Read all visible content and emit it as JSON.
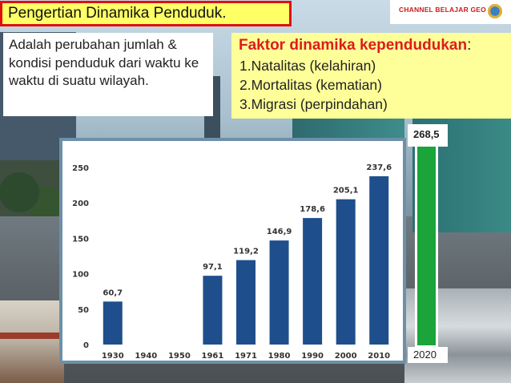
{
  "slide": {
    "title": "Pengertian Dinamika Penduduk.",
    "channel_name": "CHANNEL BELAJAR GEO",
    "definition": "Adalah perubahan jumlah & kondisi penduduk dari waktu ke waktu di suatu wilayah.",
    "faktor": {
      "title": "Faktor dinamika kependudukan",
      "colon": ":",
      "items": [
        "1.Natalitas (kelahiran)",
        "2.Mortalitas (kematian)",
        "3.Migrasi (perpindahan)"
      ]
    },
    "projection": {
      "value_label": "268,5",
      "year_label": "2020",
      "value": 268.5,
      "color": "#1aa43a"
    }
  },
  "chart_data": {
    "type": "bar",
    "categories": [
      "1930",
      "1940",
      "1950",
      "1961",
      "1971",
      "1980",
      "1990",
      "2000",
      "2010"
    ],
    "values": [
      60.7,
      null,
      null,
      97.1,
      119.2,
      146.9,
      178.6,
      205.1,
      237.6
    ],
    "data_labels": [
      "60,7",
      "",
      "",
      "97,1",
      "119,2",
      "146,9",
      "178,6",
      "205,1",
      "237,6"
    ],
    "ylim": [
      0,
      250
    ],
    "yticks": [
      "0",
      "50",
      "100",
      "150",
      "200",
      "250"
    ],
    "ytick_values": [
      0,
      50,
      100,
      150,
      200,
      250
    ],
    "grid": false,
    "bar_color": "#1f4e8c"
  }
}
